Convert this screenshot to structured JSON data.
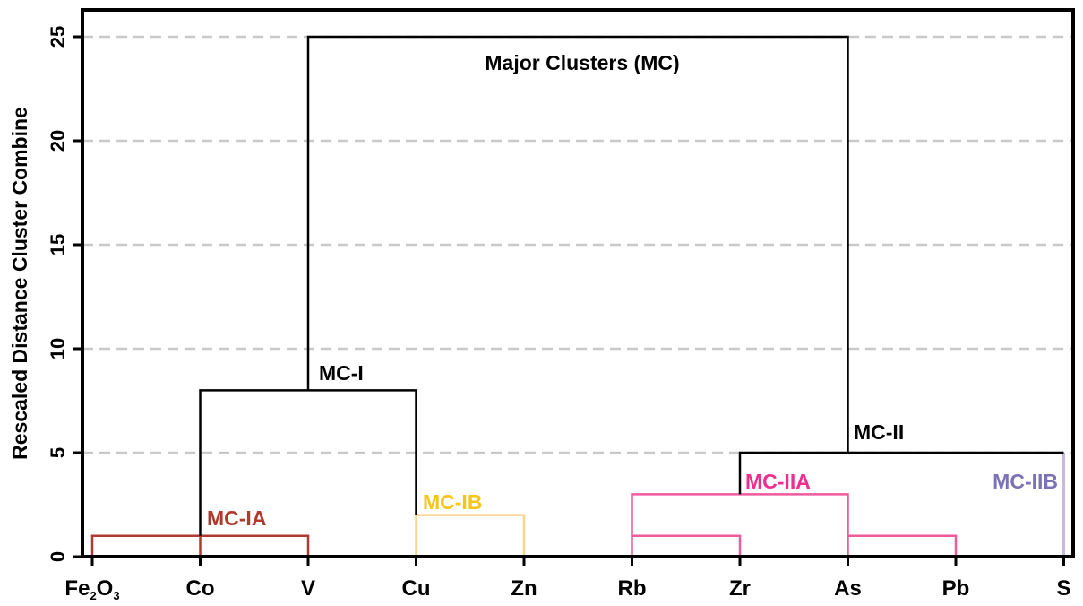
{
  "chart_data": {
    "type": "dendrogram",
    "title": "",
    "ylabel": "Rescaled Distance Cluster Combine",
    "xlabel": "",
    "ylim": [
      0,
      26
    ],
    "yticks": [
      0,
      5,
      10,
      15,
      20,
      25
    ],
    "grid": "horizontal-dashed",
    "leaves": [
      {
        "label": "Fe2O3",
        "base": "Fe",
        "parts": [
          {
            "t": "Fe"
          },
          {
            "t": "2",
            "sub": true
          },
          {
            "t": "O"
          },
          {
            "t": "3",
            "sub": true
          }
        ]
      },
      {
        "label": "Co",
        "base": "Co"
      },
      {
        "label": "V",
        "base": "V"
      },
      {
        "label": "Cu",
        "base": "Cu"
      },
      {
        "label": "Zn",
        "base": "Zn"
      },
      {
        "label": "Rb",
        "base": "Rb"
      },
      {
        "label": "Zr",
        "base": "Zr"
      },
      {
        "label": "As",
        "base": "As"
      },
      {
        "label": "Pb",
        "base": "Pb"
      },
      {
        "label": "S",
        "base": "S"
      }
    ],
    "merges": [
      {
        "left": "Fe2O3",
        "right": "V",
        "height": 1,
        "group": "MC-IA",
        "color": "#b03a2e"
      },
      {
        "left": "Cu",
        "right": "Zn",
        "height": 2,
        "group": "MC-IB",
        "color": "#f7d58a"
      },
      {
        "left": "MC-IA",
        "right": "MC-IB",
        "height": 8,
        "group": "MC-I",
        "color": "#000000"
      },
      {
        "left": "Rb",
        "right": "Zr",
        "height": 1,
        "group": "MC-IIA",
        "color": "#ef5a9d"
      },
      {
        "left": "As",
        "right": "Pb",
        "height": 1,
        "group": "MC-IIA",
        "color": "#ef5a9d"
      },
      {
        "left": "Rb-Zr",
        "right": "As-Pb",
        "height": 3,
        "group": "MC-IIA",
        "color": "#ef5a9d"
      },
      {
        "left": "MC-IIA",
        "right": "MC-IIB (S)",
        "height": 5,
        "group": "MC-II",
        "color": "#000000"
      },
      {
        "left": "MC-I",
        "right": "MC-II",
        "height": 25,
        "group": "MC",
        "color": "#000000"
      }
    ],
    "annotations": [
      {
        "text": "Major Clusters (MC)",
        "color": "#000000"
      },
      {
        "text": "MC-I",
        "color": "#000000"
      },
      {
        "text": "MC-II",
        "color": "#000000"
      },
      {
        "text": "MC-IA",
        "color": "#b03a2e"
      },
      {
        "text": "MC-IB",
        "color": "#f5c518"
      },
      {
        "text": "MC-IIA",
        "color": "#ef2f8f"
      },
      {
        "text": "MC-IIB",
        "color": "#7b72b8"
      }
    ]
  }
}
